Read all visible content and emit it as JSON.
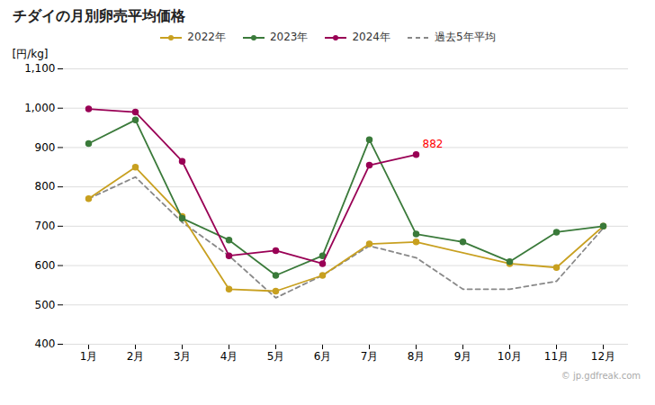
{
  "chart_data": {
    "type": "line",
    "title": "チダイの月別卵売平均価格",
    "ylabel": "[円/kg]",
    "caption": "© jp.gdfreak.com",
    "categories": [
      "1月",
      "2月",
      "3月",
      "4月",
      "5月",
      "6月",
      "7月",
      "8月",
      "9月",
      "10月",
      "11月",
      "12月"
    ],
    "series": [
      {
        "name": "2022年",
        "color": "#c8a020",
        "marker": "circle",
        "line_style": "solid",
        "values": [
          770,
          850,
          725,
          540,
          535,
          575,
          655,
          660,
          null,
          605,
          595,
          700
        ]
      },
      {
        "name": "2023年",
        "color": "#3a7a3a",
        "marker": "circle",
        "line_style": "solid",
        "values": [
          910,
          970,
          720,
          665,
          575,
          625,
          920,
          680,
          660,
          610,
          685,
          700
        ]
      },
      {
        "name": "2024年",
        "color": "#990055",
        "marker": "circle",
        "line_style": "solid",
        "values": [
          998,
          990,
          865,
          625,
          638,
          605,
          855,
          882,
          null,
          null,
          null,
          null
        ]
      },
      {
        "name": "過去5年平均",
        "color": "#888888",
        "line_style": "dashed",
        "values": [
          770,
          825,
          710,
          625,
          518,
          575,
          650,
          620,
          540,
          540,
          560,
          695
        ]
      }
    ],
    "ylim": [
      400,
      1100
    ],
    "yticks": [
      400,
      500,
      600,
      700,
      800,
      900,
      {
        "value": 1000,
        "label": "1,000"
      },
      {
        "value": 1100,
        "label": "1,100"
      }
    ],
    "grid": true,
    "legend": "top",
    "annotations": [
      {
        "text": "882",
        "x": "8月",
        "y": 882,
        "color": "red"
      }
    ]
  }
}
